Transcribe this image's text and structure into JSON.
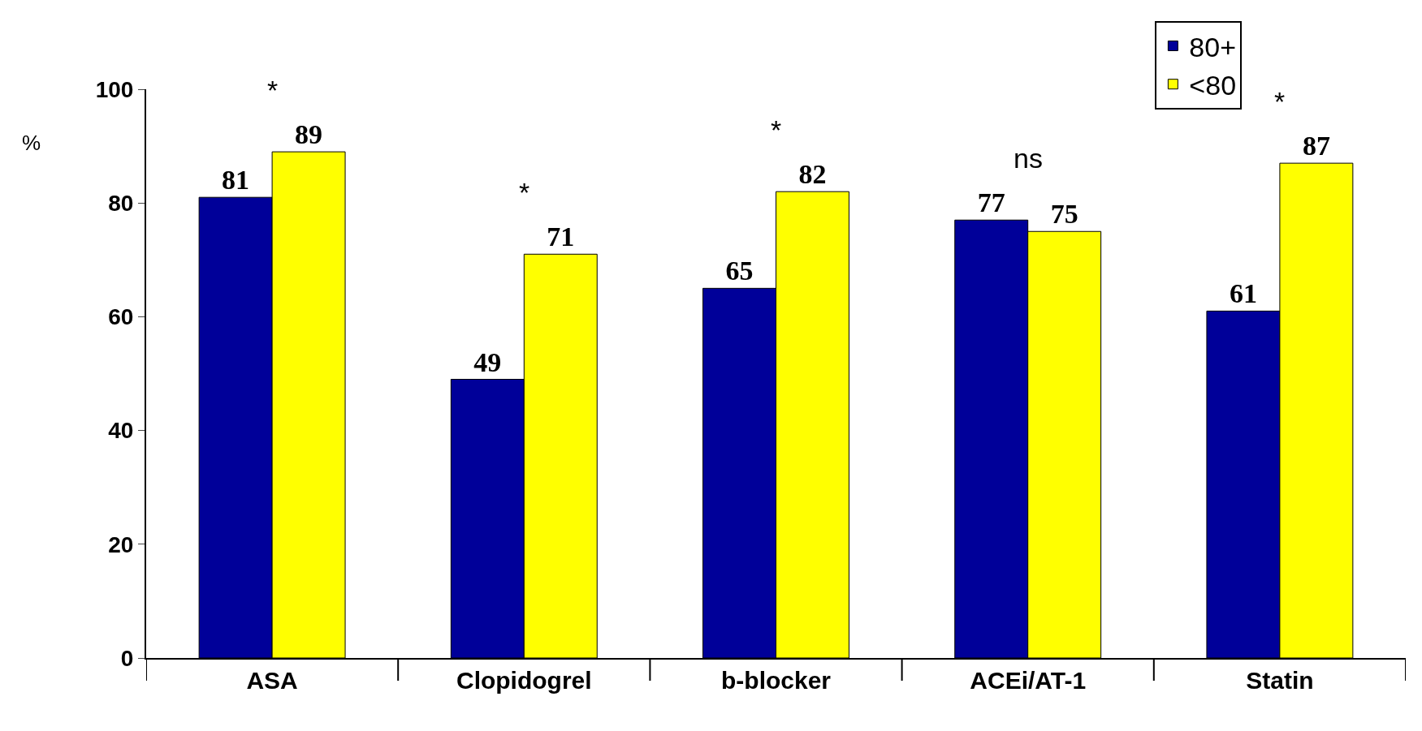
{
  "chart_data": {
    "type": "bar",
    "ylabel": "%",
    "categories": [
      "ASA",
      "Clopidogrel",
      "b-blocker",
      "ACEi/AT-1",
      "Statin"
    ],
    "series": [
      {
        "name": "80+",
        "color": "#000099",
        "values": [
          81,
          49,
          65,
          77,
          61
        ]
      },
      {
        "name": "<80",
        "color": "#ffff00",
        "values": [
          89,
          71,
          82,
          75,
          87
        ]
      }
    ],
    "ylim": [
      0,
      100
    ],
    "yticks": [
      0,
      20,
      40,
      60,
      80,
      100
    ],
    "data_labels": true,
    "legend": "top right",
    "annotations": [
      "*",
      "*",
      "*",
      "ns",
      "*"
    ]
  }
}
